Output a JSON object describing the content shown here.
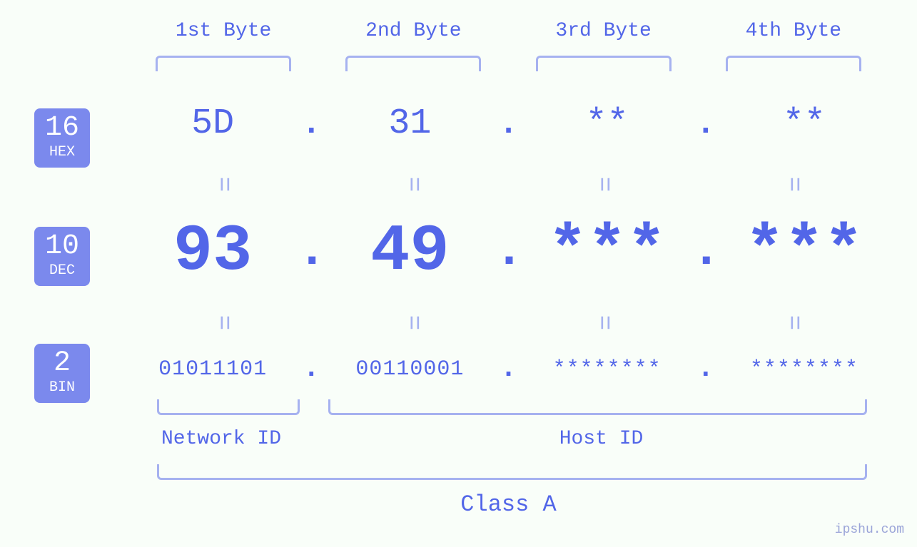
{
  "type": "infographic",
  "theme": {
    "background_color": "#f9fef9",
    "primary_color": "#5266e8",
    "primary_light": "#a6b2f0",
    "badge_bg": "#7b89ed",
    "font_family": "Courier New, monospace"
  },
  "byte_headers": [
    "1st Byte",
    "2nd Byte",
    "3rd Byte",
    "4th Byte"
  ],
  "bases": {
    "hex": {
      "num": "16",
      "label": "HEX",
      "fontsize_value": 50
    },
    "dec": {
      "num": "10",
      "label": "DEC",
      "fontsize_value": 92
    },
    "bin": {
      "num": "2",
      "label": "BIN",
      "fontsize_value": 30
    }
  },
  "bytes": [
    {
      "hex": "5D",
      "dec": "93",
      "bin": "01011101"
    },
    {
      "hex": "31",
      "dec": "49",
      "bin": "00110001"
    },
    {
      "hex": "**",
      "dec": "***",
      "bin": "********"
    },
    {
      "hex": "**",
      "dec": "***",
      "bin": "********"
    }
  ],
  "separator": ".",
  "equals_glyph": "=",
  "sections": {
    "network_id_label": "Network ID",
    "host_id_label": "Host ID",
    "network_id_bytes": [
      0
    ],
    "host_id_bytes": [
      1,
      2,
      3
    ],
    "class_label": "Class A"
  },
  "watermark": "ipshu.com"
}
